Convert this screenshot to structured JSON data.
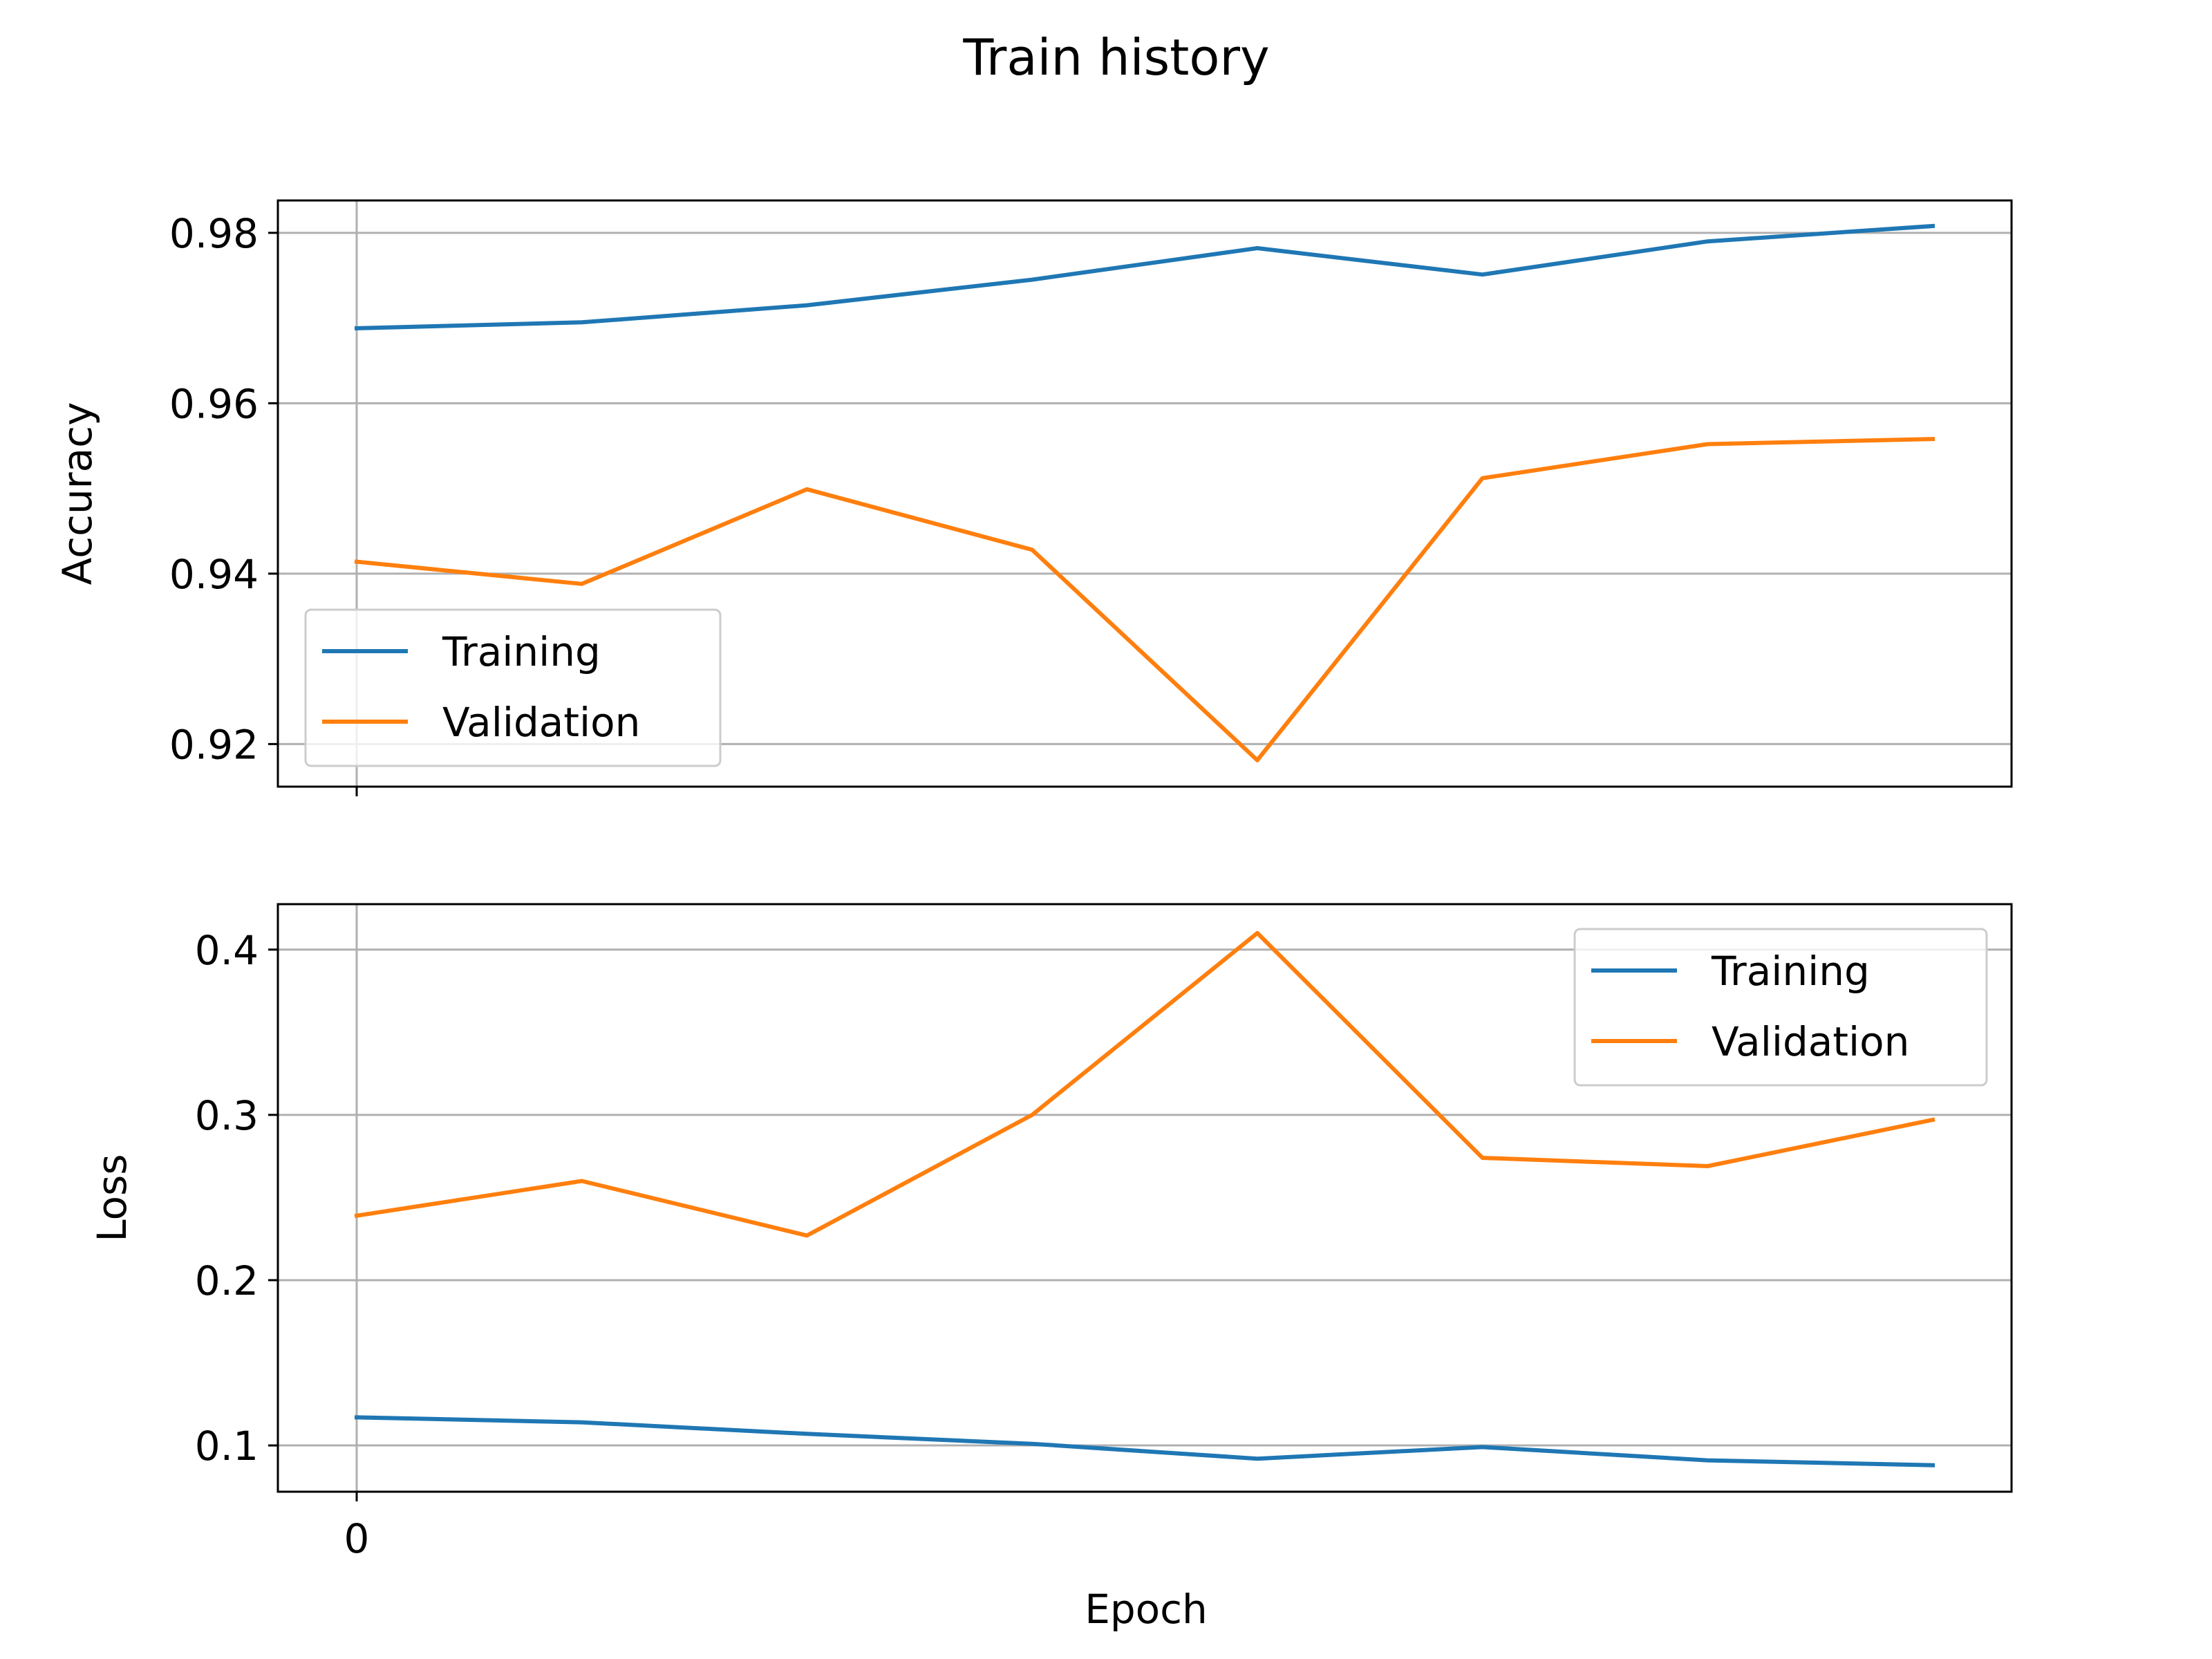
{
  "title": "Train history",
  "colors": {
    "training": "#1f77b4",
    "validation": "#ff7f0e"
  },
  "chart_data": [
    {
      "type": "line",
      "ylabel": "Accuracy",
      "xlabel": "",
      "x": [
        0,
        1,
        2,
        3,
        4,
        5,
        6,
        7
      ],
      "xlim": [
        -0.35,
        7.35
      ],
      "ylim": [
        0.915,
        0.9838
      ],
      "yticks": [
        0.92,
        0.94,
        0.96,
        0.98
      ],
      "ytick_labels": [
        "0.92",
        "0.94",
        "0.96",
        "0.98"
      ],
      "xticks": [
        0
      ],
      "xtick_labels": [],
      "grid": true,
      "legend": "lower-left",
      "series": [
        {
          "name": "Training",
          "key": "training",
          "values": [
            0.9688,
            0.9695,
            0.9715,
            0.9745,
            0.9782,
            0.9751,
            0.979,
            0.9808
          ]
        },
        {
          "name": "Validation",
          "key": "validation",
          "values": [
            0.9414,
            0.9388,
            0.9499,
            0.9428,
            0.9181,
            0.9512,
            0.9552,
            0.9558
          ]
        }
      ]
    },
    {
      "type": "line",
      "ylabel": "Loss",
      "xlabel": "Epoch",
      "x": [
        0,
        1,
        2,
        3,
        4,
        5,
        6,
        7
      ],
      "xlim": [
        -0.35,
        7.35
      ],
      "ylim": [
        0.072,
        0.4275
      ],
      "yticks": [
        0.1,
        0.2,
        0.3,
        0.4
      ],
      "ytick_labels": [
        "0.1",
        "0.2",
        "0.3",
        "0.4"
      ],
      "xticks": [
        0
      ],
      "xtick_labels": [
        "0"
      ],
      "grid": true,
      "legend": "upper-right",
      "series": [
        {
          "name": "Training",
          "key": "training",
          "values": [
            0.117,
            0.114,
            0.107,
            0.101,
            0.092,
            0.099,
            0.091,
            0.088
          ]
        },
        {
          "name": "Validation",
          "key": "validation",
          "values": [
            0.239,
            0.26,
            0.227,
            0.3,
            0.41,
            0.274,
            0.269,
            0.297
          ]
        }
      ]
    }
  ]
}
